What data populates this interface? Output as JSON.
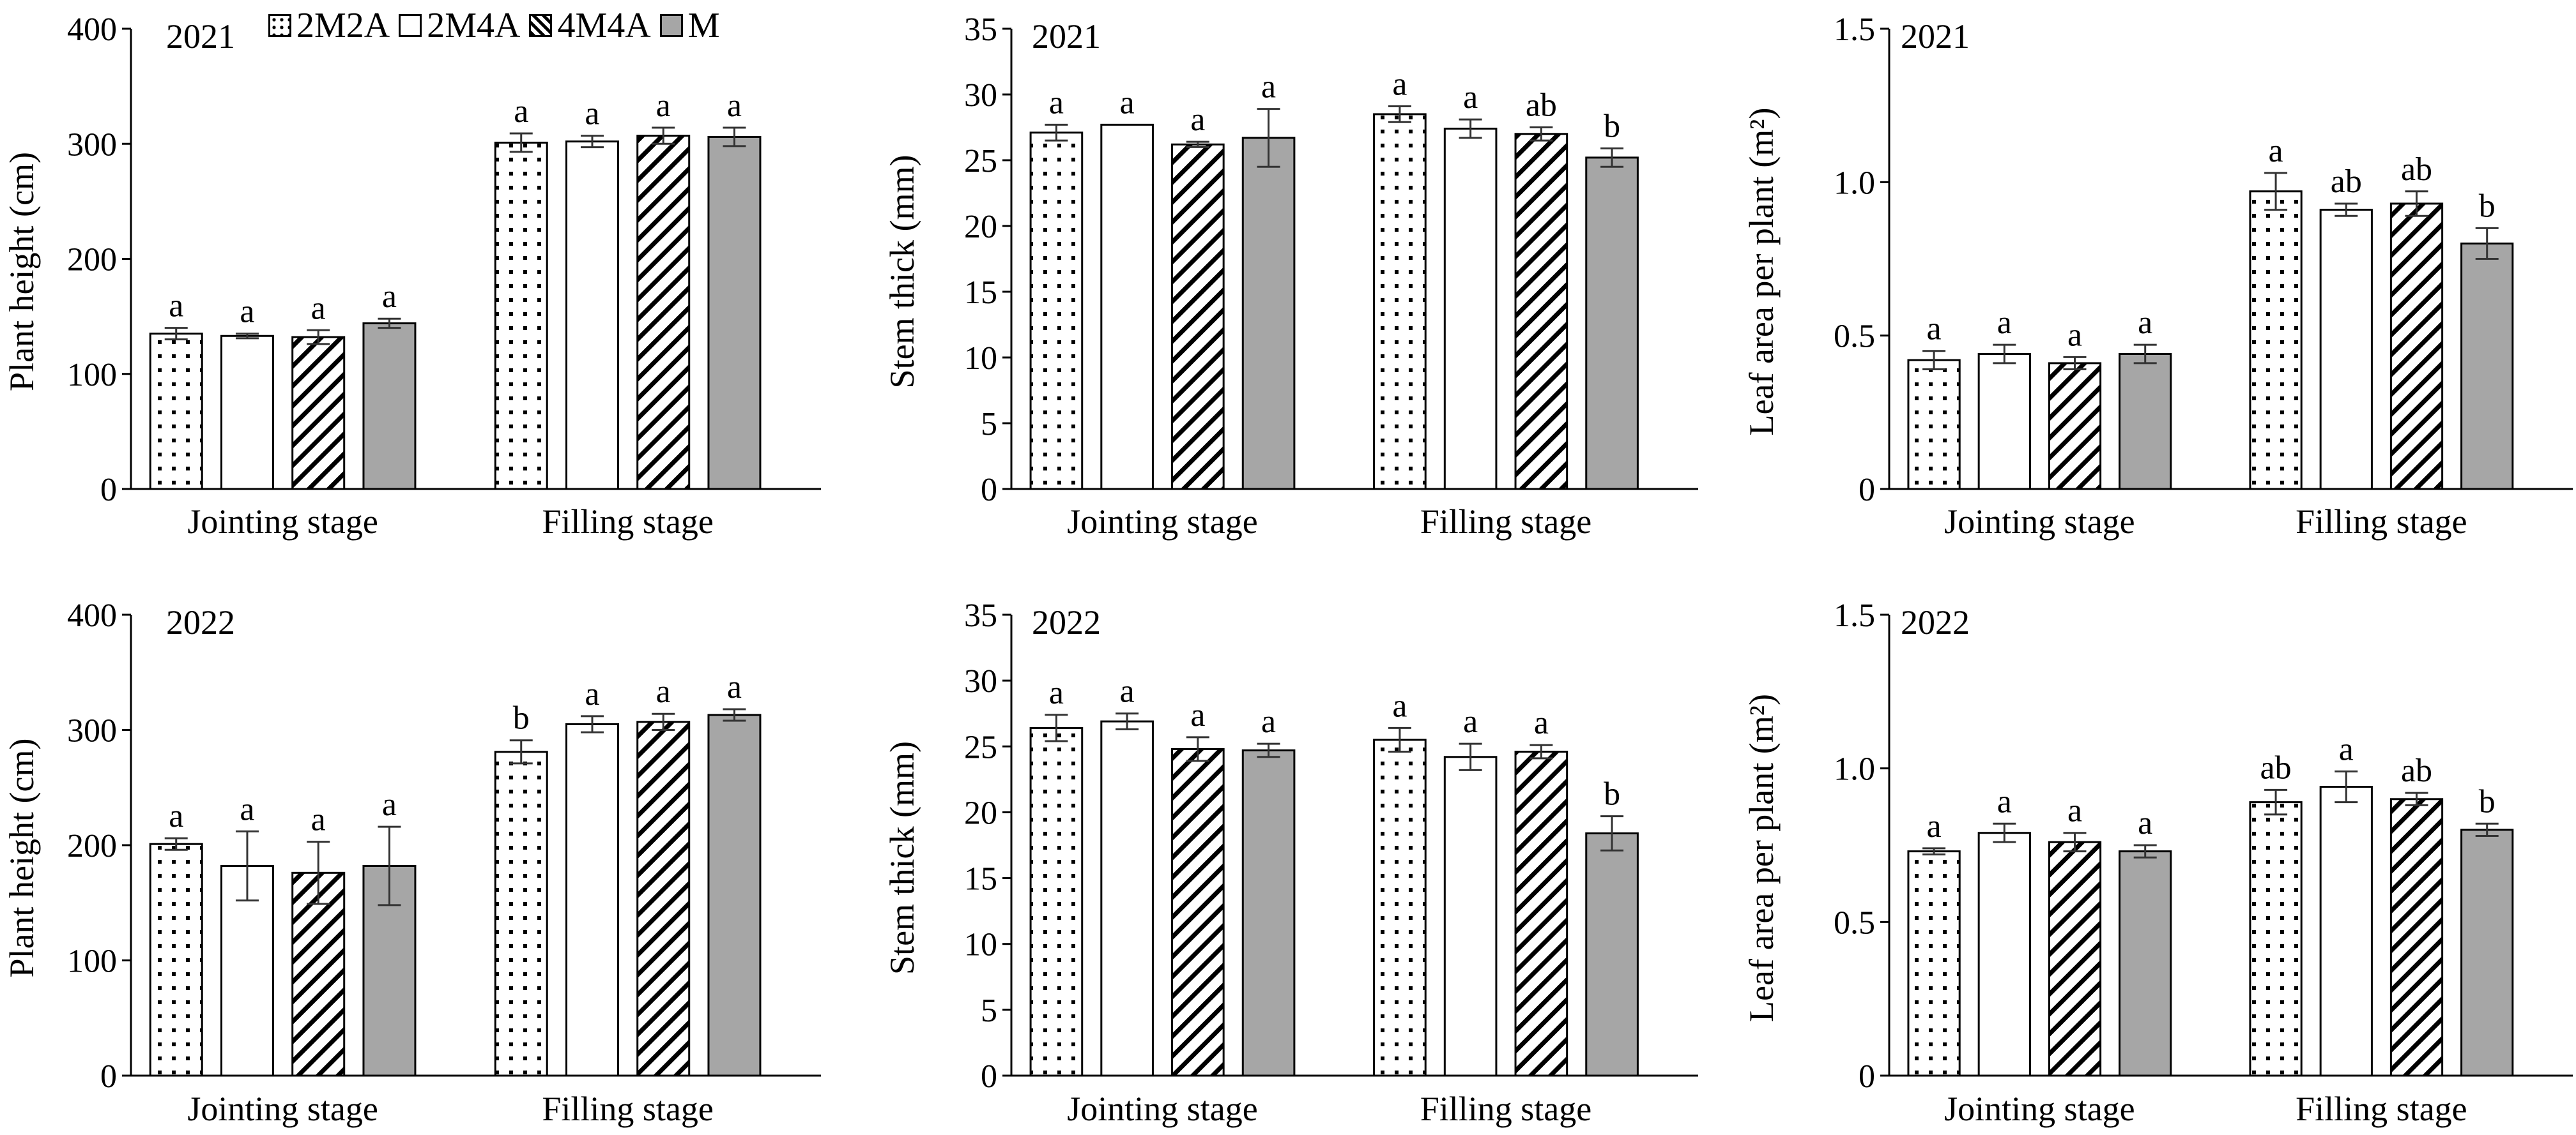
{
  "legend": [
    {
      "label": "2M2A",
      "pattern": "dots"
    },
    {
      "label": "2M4A",
      "pattern": "none"
    },
    {
      "label": "4M4A",
      "pattern": "diag"
    },
    {
      "label": "M",
      "pattern": "gray"
    }
  ],
  "colors": {
    "gray_fill": "#a6a6a6",
    "stroke": "#000000",
    "error_bar": "#333333"
  },
  "chart_data": [
    {
      "type": "bar",
      "title": "2021",
      "ylabel": "Plant height (cm)",
      "ylim": [
        0,
        400
      ],
      "yticks": [
        0,
        100,
        200,
        300,
        400
      ],
      "categories": [
        "Jointing stage",
        "Filling stage"
      ],
      "series": [
        {
          "name": "2M2A",
          "values": [
            135,
            301
          ],
          "errors": [
            5,
            8
          ],
          "labels": [
            "a",
            "a"
          ]
        },
        {
          "name": "2M4A",
          "values": [
            133,
            302
          ],
          "errors": [
            2,
            5
          ],
          "labels": [
            "a",
            "a"
          ]
        },
        {
          "name": "4M4A",
          "values": [
            132,
            307
          ],
          "errors": [
            6,
            7
          ],
          "labels": [
            "a",
            "a"
          ]
        },
        {
          "name": "M",
          "values": [
            144,
            306
          ],
          "errors": [
            4,
            8
          ],
          "labels": [
            "a",
            "a"
          ]
        }
      ]
    },
    {
      "type": "bar",
      "title": "2021",
      "ylabel": "Stem thick (mm)",
      "ylim": [
        0,
        35
      ],
      "yticks": [
        0,
        5,
        10,
        15,
        20,
        25,
        30,
        35
      ],
      "categories": [
        "Jointing stage",
        "Filling stage"
      ],
      "series": [
        {
          "name": "2M2A",
          "values": [
            27.1,
            28.5
          ],
          "errors": [
            0.6,
            0.6
          ],
          "labels": [
            "a",
            "a"
          ]
        },
        {
          "name": "2M4A",
          "values": [
            27.7,
            27.4
          ],
          "errors": [
            0,
            0.7
          ],
          "labels": [
            "a",
            "a"
          ]
        },
        {
          "name": "4M4A",
          "values": [
            26.2,
            27.0
          ],
          "errors": [
            0.2,
            0.5
          ],
          "labels": [
            "a",
            "ab"
          ]
        },
        {
          "name": "M",
          "values": [
            26.7,
            25.2
          ],
          "errors": [
            2.2,
            0.7
          ],
          "labels": [
            "a",
            "b"
          ]
        }
      ]
    },
    {
      "type": "bar",
      "title": "2021",
      "ylabel": "Leaf area per plant (m²)",
      "ylim": [
        0,
        1.5
      ],
      "yticks": [
        0,
        0.5,
        1.0,
        1.5
      ],
      "categories": [
        "Jointing stage",
        "Filling stage"
      ],
      "series": [
        {
          "name": "2M2A",
          "values": [
            0.42,
            0.97
          ],
          "errors": [
            0.03,
            0.06
          ],
          "labels": [
            "a",
            "a"
          ]
        },
        {
          "name": "2M4A",
          "values": [
            0.44,
            0.91
          ],
          "errors": [
            0.03,
            0.02
          ],
          "labels": [
            "a",
            "ab"
          ]
        },
        {
          "name": "4M4A",
          "values": [
            0.41,
            0.93
          ],
          "errors": [
            0.02,
            0.04
          ],
          "labels": [
            "a",
            "ab"
          ]
        },
        {
          "name": "M",
          "values": [
            0.44,
            0.8
          ],
          "errors": [
            0.03,
            0.05
          ],
          "labels": [
            "a",
            "b"
          ]
        }
      ]
    },
    {
      "type": "bar",
      "title": "2022",
      "ylabel": "Plant height (cm)",
      "ylim": [
        0,
        400
      ],
      "yticks": [
        0,
        100,
        200,
        300,
        400
      ],
      "categories": [
        "Jointing stage",
        "Filling stage"
      ],
      "series": [
        {
          "name": "2M2A",
          "values": [
            201,
            281
          ],
          "errors": [
            5,
            10
          ],
          "labels": [
            "a",
            "b"
          ]
        },
        {
          "name": "2M4A",
          "values": [
            182,
            305
          ],
          "errors": [
            30,
            7
          ],
          "labels": [
            "a",
            "a"
          ]
        },
        {
          "name": "4M4A",
          "values": [
            176,
            307
          ],
          "errors": [
            27,
            7
          ],
          "labels": [
            "a",
            "a"
          ]
        },
        {
          "name": "M",
          "values": [
            182,
            313
          ],
          "errors": [
            34,
            5
          ],
          "labels": [
            "a",
            "a"
          ]
        }
      ]
    },
    {
      "type": "bar",
      "title": "2022",
      "ylabel": "Stem thick (mm)",
      "ylim": [
        0,
        35
      ],
      "yticks": [
        0,
        5,
        10,
        15,
        20,
        25,
        30,
        35
      ],
      "categories": [
        "Jointing stage",
        "Filling stage"
      ],
      "series": [
        {
          "name": "2M2A",
          "values": [
            26.4,
            25.5
          ],
          "errors": [
            1.0,
            0.9
          ],
          "labels": [
            "a",
            "a"
          ]
        },
        {
          "name": "2M4A",
          "values": [
            26.9,
            24.2
          ],
          "errors": [
            0.6,
            1.0
          ],
          "labels": [
            "a",
            "a"
          ]
        },
        {
          "name": "4M4A",
          "values": [
            24.8,
            24.6
          ],
          "errors": [
            0.9,
            0.5
          ],
          "labels": [
            "a",
            "a"
          ]
        },
        {
          "name": "M",
          "values": [
            24.7,
            18.4
          ],
          "errors": [
            0.5,
            1.3
          ],
          "labels": [
            "a",
            "b"
          ]
        }
      ]
    },
    {
      "type": "bar",
      "title": "2022",
      "ylabel": "Leaf area per plant (m²)",
      "ylim": [
        0,
        1.5
      ],
      "yticks": [
        0,
        0.5,
        1.0,
        1.5
      ],
      "categories": [
        "Jointing stage",
        "Filling stage"
      ],
      "series": [
        {
          "name": "2M2A",
          "values": [
            0.73,
            0.89
          ],
          "errors": [
            0.01,
            0.04
          ],
          "labels": [
            "a",
            "ab"
          ]
        },
        {
          "name": "2M4A",
          "values": [
            0.79,
            0.94
          ],
          "errors": [
            0.03,
            0.05
          ],
          "labels": [
            "a",
            "a"
          ]
        },
        {
          "name": "4M4A",
          "values": [
            0.76,
            0.9
          ],
          "errors": [
            0.03,
            0.02
          ],
          "labels": [
            "a",
            "ab"
          ]
        },
        {
          "name": "M",
          "values": [
            0.73,
            0.8
          ],
          "errors": [
            0.02,
            0.02
          ],
          "labels": [
            "a",
            "b"
          ]
        }
      ]
    }
  ]
}
